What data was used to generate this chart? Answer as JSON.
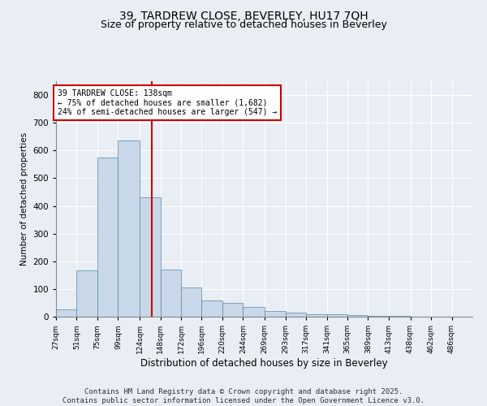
{
  "title_line1": "39, TARDREW CLOSE, BEVERLEY, HU17 7QH",
  "title_line2": "Size of property relative to detached houses in Beverley",
  "xlabel": "Distribution of detached houses by size in Beverley",
  "ylabel": "Number of detached properties",
  "bar_edges": [
    27,
    51,
    75,
    99,
    124,
    148,
    172,
    196,
    220,
    244,
    269,
    293,
    317,
    341,
    365,
    389,
    413,
    438,
    462,
    486,
    510
  ],
  "bar_heights": [
    25,
    168,
    575,
    635,
    430,
    170,
    105,
    60,
    50,
    35,
    20,
    15,
    10,
    8,
    5,
    3,
    2,
    0,
    1,
    0
  ],
  "bar_color": "#c8d8e8",
  "bar_edgecolor": "#5588aa",
  "vline_x": 138,
  "vline_color": "#cc0000",
  "annotation_text": "39 TARDREW CLOSE: 138sqm\n← 75% of detached houses are smaller (1,682)\n24% of semi-detached houses are larger (547) →",
  "annotation_box_edgecolor": "#cc0000",
  "annotation_box_facecolor": "#ffffff",
  "ylim": [
    0,
    850
  ],
  "yticks": [
    0,
    100,
    200,
    300,
    400,
    500,
    600,
    700,
    800
  ],
  "background_color": "#e8eef4",
  "plot_background_color": "#e8eef4",
  "grid_color": "#ffffff",
  "title_fontsize": 10,
  "subtitle_fontsize": 9,
  "footer_text": "Contains HM Land Registry data © Crown copyright and database right 2025.\nContains public sector information licensed under the Open Government Licence v3.0.",
  "footer_fontsize": 6.5
}
